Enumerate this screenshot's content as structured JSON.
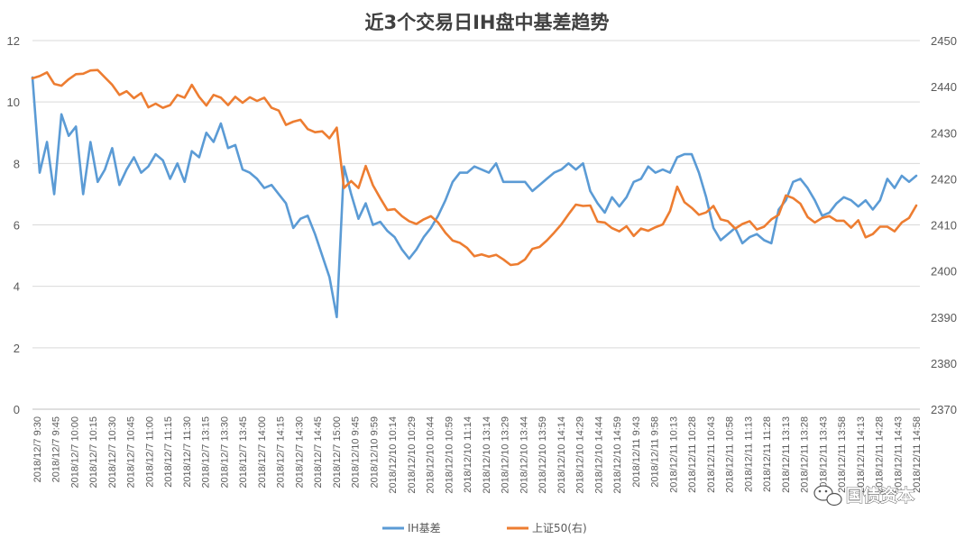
{
  "chart_data": {
    "type": "line",
    "title": "近3个交易日IH盘中基差趋势",
    "xlabel": "",
    "ylabel": "",
    "y_left_lim": [
      0,
      12
    ],
    "y_left_ticks": [
      "0",
      "2",
      "4",
      "6",
      "8",
      "10",
      "12"
    ],
    "y_right_lim": [
      2370,
      2450
    ],
    "y_right_ticks": [
      "2370",
      "2380",
      "2390",
      "2400",
      "2410",
      "2420",
      "2430",
      "2440",
      "2450"
    ],
    "grid": true,
    "legend_position": "bottom",
    "x_tick_labels": [
      "2018/12/7 9:30",
      "2018/12/7 9:45",
      "2018/12/7 10:00",
      "2018/12/7 10:15",
      "2018/12/7 10:30",
      "2018/12/7 10:45",
      "2018/12/7 11:00",
      "2018/12/7 11:15",
      "2018/12/7 11:30",
      "2018/12/7 13:15",
      "2018/12/7 13:30",
      "2018/12/7 13:45",
      "2018/12/7 14:00",
      "2018/12/7 14:15",
      "2018/12/7 14:30",
      "2018/12/7 14:45",
      "2018/12/7 15:00",
      "2018/12/10 9:45",
      "2018/12/10 9:59",
      "2018/12/10 10:14",
      "2018/12/10 10:29",
      "2018/12/10 10:44",
      "2018/12/10 10:59",
      "2018/12/10 11:14",
      "2018/12/10 13:14",
      "2018/12/10 13:29",
      "2018/12/10 13:44",
      "2018/12/10 13:59",
      "2018/12/10 14:14",
      "2018/12/10 14:29",
      "2018/12/10 14:44",
      "2018/12/10 14:59",
      "2018/12/11 9:43",
      "2018/12/11 9:58",
      "2018/12/11 10:13",
      "2018/12/11 10:28",
      "2018/12/11 10:43",
      "2018/12/11 10:58",
      "2018/12/11 11:13",
      "2018/12/11 11:28",
      "2018/12/11 13:13",
      "2018/12/11 13:28",
      "2018/12/11 13:43",
      "2018/12/11 13:58",
      "2018/12/11 14:13",
      "2018/12/11 14:28",
      "2018/12/11 14:43",
      "2018/12/11 14:58"
    ],
    "series": [
      {
        "name": "IH基差",
        "axis": "left",
        "color": "#5B9BD5",
        "values": [
          10.8,
          7.7,
          8.7,
          7.0,
          9.6,
          8.9,
          9.2,
          7.0,
          8.7,
          7.4,
          7.8,
          8.5,
          7.3,
          7.8,
          8.2,
          7.7,
          7.9,
          8.3,
          8.1,
          7.5,
          8.0,
          7.4,
          8.4,
          8.2,
          9.0,
          8.7,
          9.3,
          8.5,
          8.6,
          7.8,
          7.7,
          7.5,
          7.2,
          7.3,
          7.0,
          6.7,
          5.9,
          6.2,
          6.3,
          5.7,
          5.0,
          4.3,
          3.0,
          7.9,
          7.0,
          6.2,
          6.7,
          6.0,
          6.1,
          5.8,
          5.6,
          5.2,
          4.9,
          5.2,
          5.6,
          5.9,
          6.3,
          6.8,
          7.4,
          7.7,
          7.7,
          7.9,
          7.8,
          7.7,
          8.0,
          7.4,
          7.4,
          7.4,
          7.4,
          7.1,
          7.3,
          7.5,
          7.7,
          7.8,
          8.0,
          7.8,
          8.0,
          7.1,
          6.7,
          6.4,
          6.9,
          6.6,
          6.9,
          7.4,
          7.5,
          7.9,
          7.7,
          7.8,
          7.7,
          8.2,
          8.3,
          8.3,
          7.7,
          6.9,
          5.9,
          5.5,
          5.7,
          5.9,
          5.4,
          5.6,
          5.7,
          5.5,
          5.4,
          6.5,
          6.8,
          7.4,
          7.5,
          7.2,
          6.8,
          6.3,
          6.4,
          6.7,
          6.9,
          6.8,
          6.6,
          6.8,
          6.5,
          6.8,
          7.5,
          7.2,
          7.6,
          7.4,
          7.6
        ]
      },
      {
        "name": "上证50(右)",
        "axis": "right",
        "color": "#ED7D31",
        "values": [
          2441.8,
          2442.3,
          2443.1,
          2440.6,
          2440.2,
          2441.6,
          2442.7,
          2442.8,
          2443.5,
          2443.6,
          2442.0,
          2440.4,
          2438.2,
          2439.0,
          2437.5,
          2438.6,
          2435.5,
          2436.3,
          2435.4,
          2436.0,
          2438.2,
          2437.6,
          2440.4,
          2437.8,
          2435.9,
          2438.2,
          2437.6,
          2436.0,
          2437.8,
          2436.5,
          2437.7,
          2436.9,
          2437.6,
          2435.4,
          2434.8,
          2431.7,
          2432.4,
          2432.8,
          2430.8,
          2430.1,
          2430.3,
          2428.8,
          2431.1,
          2418.0,
          2419.5,
          2418.0,
          2422.8,
          2418.6,
          2415.8,
          2413.2,
          2413.4,
          2411.9,
          2410.8,
          2410.2,
          2411.2,
          2411.9,
          2410.5,
          2408.3,
          2406.6,
          2406.1,
          2405.0,
          2403.2,
          2403.6,
          2403.1,
          2403.5,
          2402.5,
          2401.3,
          2401.5,
          2402.5,
          2404.8,
          2405.2,
          2406.6,
          2408.3,
          2410.1,
          2412.3,
          2414.4,
          2414.1,
          2414.2,
          2410.7,
          2410.5,
          2409.3,
          2408.6,
          2409.7,
          2407.6,
          2409.2,
          2408.7,
          2409.5,
          2410.1,
          2413.0,
          2418.3,
          2414.9,
          2413.7,
          2412.2,
          2412.7,
          2414.1,
          2411.2,
          2410.8,
          2409.2,
          2410.2,
          2410.8,
          2409.0,
          2409.6,
          2411.2,
          2412.2,
          2416.4,
          2415.8,
          2414.6,
          2411.7,
          2410.5,
          2411.5,
          2411.9,
          2410.9,
          2410.9,
          2409.4,
          2411.0,
          2407.3,
          2408.0,
          2409.6,
          2409.6,
          2408.6,
          2410.5,
          2411.5,
          2414.2
        ]
      }
    ]
  },
  "watermark_text": "国债资本"
}
